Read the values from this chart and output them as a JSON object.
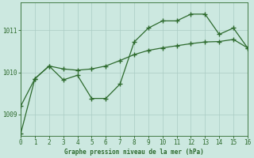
{
  "line1_x": [
    0,
    1,
    2,
    3,
    4,
    5,
    6,
    7,
    8,
    9,
    10,
    11,
    12,
    13,
    14,
    15,
    16
  ],
  "line1_y": [
    1008.55,
    1009.85,
    1010.15,
    1009.82,
    1009.93,
    1009.38,
    1009.38,
    1009.72,
    1010.72,
    1011.05,
    1011.22,
    1011.22,
    1011.38,
    1011.38,
    1010.9,
    1011.05,
    1010.58
  ],
  "line2_x": [
    0,
    1,
    2,
    3,
    4,
    5,
    6,
    7,
    8,
    9,
    10,
    11,
    12,
    13,
    14,
    15,
    16
  ],
  "line2_y": [
    1009.2,
    1009.85,
    1010.15,
    1010.08,
    1010.05,
    1010.08,
    1010.15,
    1010.28,
    1010.42,
    1010.52,
    1010.58,
    1010.63,
    1010.68,
    1010.72,
    1010.73,
    1010.78,
    1010.58
  ],
  "line_color": "#2d6a2d",
  "bg_color": "#cce8e0",
  "grid_color": "#aaccc4",
  "xlabel": "Graphe pression niveau de la mer (hPa)",
  "xlim": [
    0,
    16
  ],
  "ylim": [
    1008.5,
    1011.65
  ],
  "yticks": [
    1009,
    1010,
    1011
  ],
  "xticks": [
    0,
    1,
    2,
    3,
    4,
    5,
    6,
    7,
    8,
    9,
    10,
    11,
    12,
    13,
    14,
    15,
    16
  ]
}
